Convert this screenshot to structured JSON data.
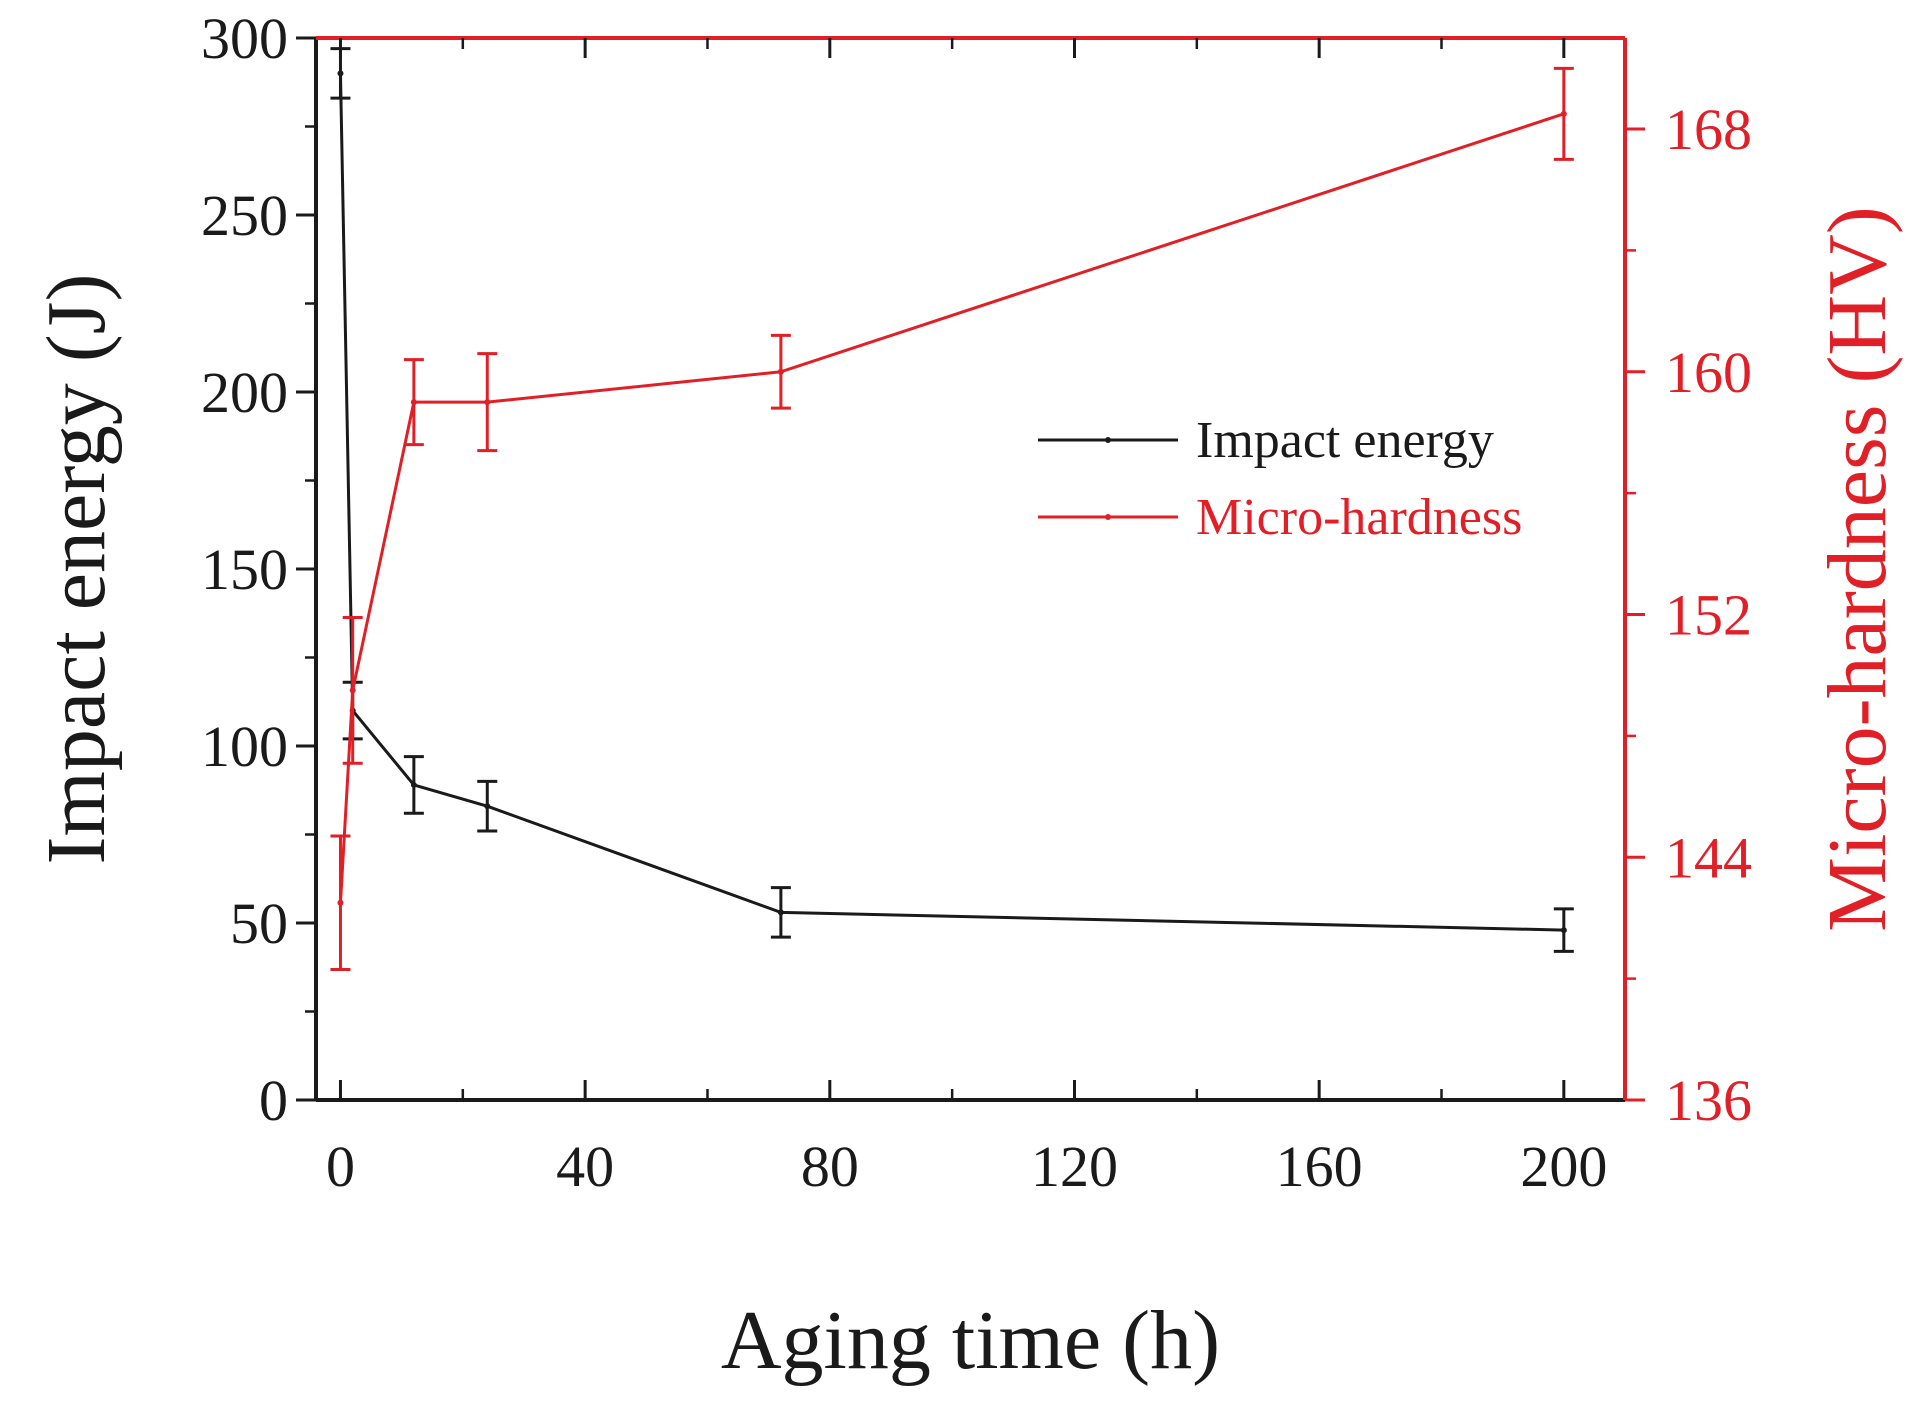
{
  "chart_data": {
    "type": "line",
    "xlabel": "Aging time (h)",
    "ylabel_left": "Impact energy (J)",
    "ylabel_right": "Micro-hardness (HV)",
    "xlim": [
      -4,
      210
    ],
    "x_ticks": [
      0,
      40,
      80,
      120,
      160,
      200
    ],
    "x_minor_ticks": [
      20,
      60,
      100,
      140,
      180
    ],
    "ylim_left": [
      0,
      300
    ],
    "y_ticks_left": [
      0,
      50,
      100,
      150,
      200,
      250,
      300
    ],
    "ylim_right": [
      136,
      171
    ],
    "y_ticks_right": [
      136,
      144,
      152,
      160,
      168
    ],
    "legend_position": "center-right",
    "colors": {
      "impact": "#1a1a1a",
      "hardness": "#e01f26"
    },
    "series": [
      {
        "name": "Impact energy",
        "axis": "left",
        "x": [
          0,
          2,
          12,
          24,
          72,
          200
        ],
        "values": [
          290,
          110,
          89,
          83,
          53,
          48
        ],
        "errors": [
          7,
          8,
          8,
          7,
          7,
          6
        ]
      },
      {
        "name": "Micro-hardness",
        "axis": "right",
        "x": [
          0,
          2,
          12,
          24,
          72,
          200
        ],
        "values": [
          142.5,
          149.5,
          159,
          159,
          160,
          168.5
        ],
        "errors": [
          2.2,
          2.4,
          1.4,
          1.6,
          1.2,
          1.5
        ]
      }
    ]
  }
}
